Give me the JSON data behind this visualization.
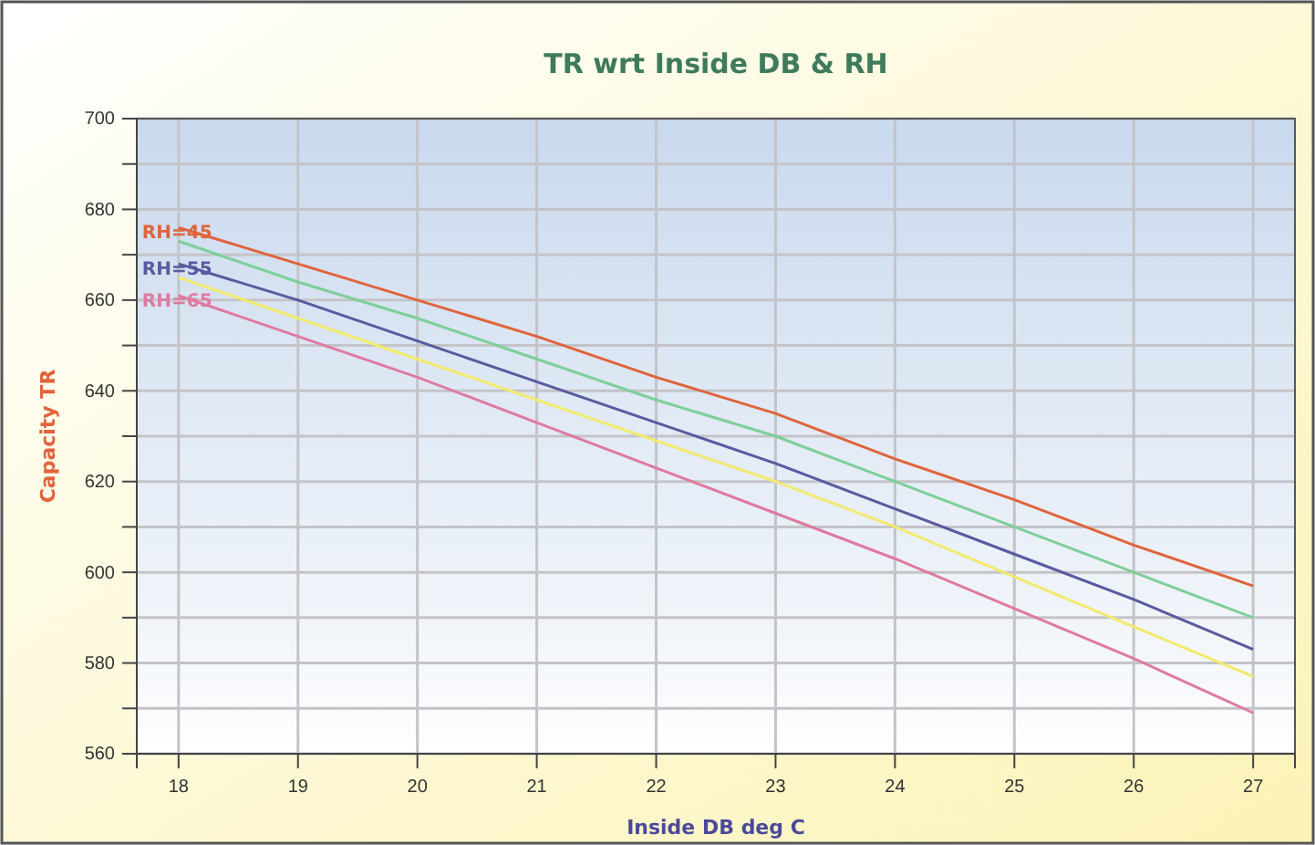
{
  "chart_data": {
    "type": "line",
    "title": "TR wrt Inside DB & RH",
    "xlabel": "Inside DB deg C",
    "ylabel": "Capacity TR",
    "x": [
      18,
      19,
      20,
      21,
      22,
      23,
      24,
      25,
      26,
      27
    ],
    "series": [
      {
        "name": "RH=45",
        "color": "#e0643c",
        "values": [
          676,
          668,
          660,
          652,
          643,
          635,
          625,
          616,
          606,
          597
        ]
      },
      {
        "color": "#7fcf9a",
        "values": [
          673,
          664,
          656,
          647,
          638,
          630,
          620,
          610,
          600,
          590
        ]
      },
      {
        "name": "RH=55",
        "color": "#5a5aa0",
        "values": [
          668,
          660,
          651,
          642,
          633,
          624,
          614,
          604,
          594,
          583
        ]
      },
      {
        "color": "#f2ea6e",
        "values": [
          665,
          656,
          647,
          638,
          629,
          620,
          610,
          599,
          588,
          577
        ]
      },
      {
        "name": "RH=65",
        "color": "#e07aa0",
        "values": [
          661,
          652,
          643,
          633,
          623,
          613,
          603,
          592,
          581,
          569
        ]
      }
    ],
    "xlim": [
      17.65,
      27.35
    ],
    "xticks": [
      18,
      19,
      20,
      21,
      22,
      23,
      24,
      25,
      26,
      27
    ],
    "ylim": [
      560,
      700
    ],
    "yticks": [
      560,
      {
        "value": 570,
        "label": null
      },
      580,
      {
        "value": 590,
        "label": null
      },
      600,
      {
        "value": 610,
        "label": null
      },
      620,
      {
        "value": 630,
        "label": null
      },
      640,
      {
        "value": 650,
        "label": null
      },
      660,
      {
        "value": 670,
        "label": null
      },
      680,
      {
        "value": 690,
        "label": null
      },
      700
    ],
    "grid": true,
    "legend": false,
    "line_style": "solid",
    "marker": "none"
  }
}
